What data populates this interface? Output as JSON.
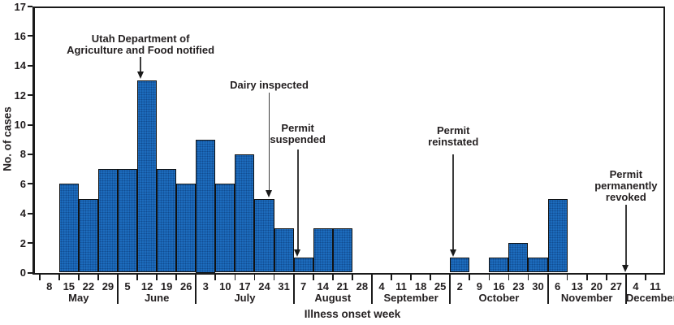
{
  "chart_data": {
    "type": "bar",
    "title": "",
    "xlabel": "Illness onset week",
    "ylabel": "No. of cases",
    "ylim": [
      0,
      17
    ],
    "y_ticks": [
      0,
      2,
      4,
      6,
      8,
      10,
      12,
      14,
      16
    ],
    "y_top_label": "17",
    "grid": "off",
    "legend": "none",
    "bar_color": "#1d6cbd",
    "bar_border_color": "#111111",
    "axis_color": "#1a1a1a",
    "text_color": "#231f20",
    "months": [
      {
        "name": "May",
        "weeks": [
          8,
          15,
          22,
          29
        ],
        "values": [
          0,
          6,
          5,
          7
        ]
      },
      {
        "name": "June",
        "weeks": [
          5,
          12,
          19,
          26
        ],
        "values": [
          7,
          13,
          7,
          6
        ]
      },
      {
        "name": "July",
        "weeks": [
          3,
          10,
          17,
          24,
          31
        ],
        "values": [
          9,
          6,
          8,
          5,
          3
        ]
      },
      {
        "name": "August",
        "weeks": [
          7,
          14,
          21,
          28
        ],
        "values": [
          1,
          3,
          3,
          0
        ]
      },
      {
        "name": "September",
        "weeks": [
          4,
          11,
          18,
          25
        ],
        "values": [
          0,
          0,
          0,
          0
        ]
      },
      {
        "name": "October",
        "weeks": [
          2,
          9,
          16,
          23,
          30
        ],
        "values": [
          1,
          0,
          1,
          2,
          1
        ]
      },
      {
        "name": "November",
        "weeks": [
          6,
          13,
          20,
          27
        ],
        "values": [
          5,
          0,
          0,
          0
        ]
      },
      {
        "name": "December",
        "weeks": [
          4,
          11
        ],
        "values": [
          0,
          0
        ]
      }
    ],
    "annotations": [
      {
        "id": "notified",
        "lines": [
          "Utah Department of",
          "Agriculture and Food notified"
        ],
        "target_kind": "bar",
        "month": "June",
        "week": 12
      },
      {
        "id": "inspected",
        "lines": [
          "Dairy inspected"
        ],
        "target_kind": "bar",
        "month": "July",
        "week": 24
      },
      {
        "id": "suspended",
        "lines": [
          "Permit",
          "suspended"
        ],
        "target_kind": "bar",
        "month": "August",
        "week": 7
      },
      {
        "id": "reinstated",
        "lines": [
          "Permit",
          "reinstated"
        ],
        "target_kind": "bar",
        "month": "October",
        "week": 2
      },
      {
        "id": "revoked",
        "lines": [
          "Permit",
          "permanently",
          "revoked"
        ],
        "target_kind": "axis-boundary",
        "boundary_after": "November"
      }
    ]
  }
}
